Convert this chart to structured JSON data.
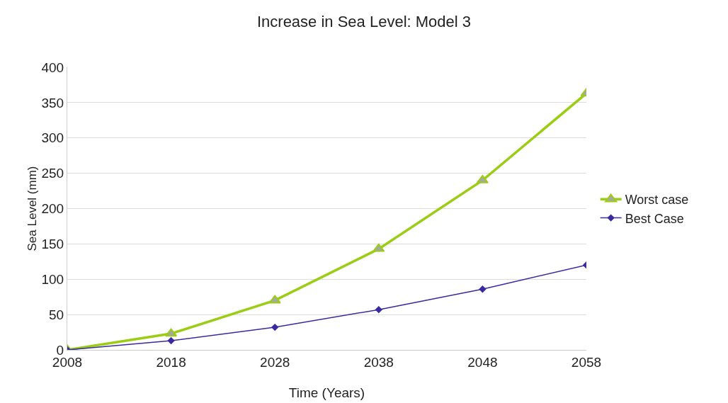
{
  "chart_data": {
    "type": "line",
    "title": "Increase in Sea Level: Model 3",
    "xlabel": "Time (Years)",
    "ylabel": "Sea Level (mm)",
    "x": [
      2008,
      2018,
      2028,
      2038,
      2048,
      2058
    ],
    "series": [
      {
        "name": "Worst case",
        "color": "#9acd14",
        "marker": "triangle",
        "values": [
          0,
          23,
          70,
          143,
          240,
          363
        ]
      },
      {
        "name": "Best Case",
        "color": "#3a2aa0",
        "marker": "diamond",
        "values": [
          0,
          13,
          32,
          57,
          86,
          120
        ]
      }
    ],
    "xlim": [
      2008,
      2058
    ],
    "xticks": [
      2008,
      2018,
      2028,
      2038,
      2048,
      2058
    ],
    "ylim": [
      0,
      400
    ],
    "yticks": [
      0,
      50,
      100,
      150,
      200,
      250,
      300,
      350,
      400
    ],
    "grid": "y",
    "legend": "right",
    "line_style": "solid"
  }
}
